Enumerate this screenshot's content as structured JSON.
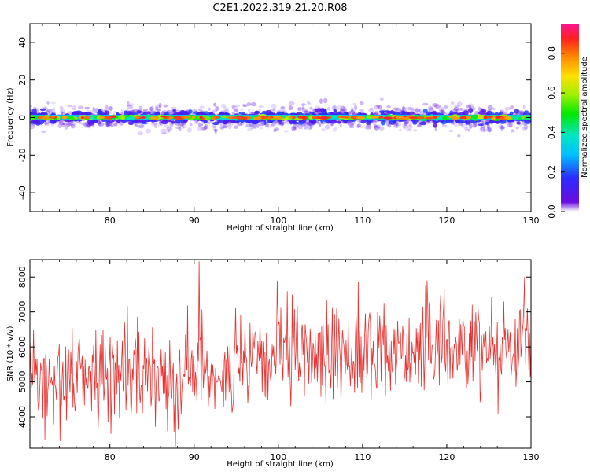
{
  "title": "C2E1.2022.319.21.20.R08",
  "chart_data": [
    {
      "type": "heatmap",
      "xlabel": "Height of straight line (km)",
      "ylabel": "Frequency (Hz)",
      "xlim": [
        70.5,
        130
      ],
      "ylim": [
        -50,
        50
      ],
      "xticks": [
        80,
        90,
        100,
        110,
        120,
        130
      ],
      "yticks": [
        -40,
        -20,
        0,
        20,
        40
      ],
      "band_center_hz": 0,
      "band_core_halfwidth_hz": 2,
      "band_outer_halfwidth_hz": 6,
      "grid": false,
      "colorbar": {
        "label": "Normalized spectral amplitude",
        "range": [
          0,
          0.95
        ],
        "ticks": [
          0.0,
          0.2,
          0.4,
          0.6,
          0.8
        ],
        "colormap": "gist_ncar"
      }
    },
    {
      "type": "line",
      "xlabel": "Height of straight line (km)",
      "ylabel": "SNR (10 * v/v)",
      "xlim": [
        70.5,
        130
      ],
      "ylim": [
        3100,
        8500
      ],
      "xticks": [
        80,
        90,
        100,
        110,
        120,
        130
      ],
      "yticks": [
        4000,
        5000,
        6000,
        7000,
        8000
      ],
      "line_color": "#e8302e",
      "grid": false,
      "trend": [
        [
          70.5,
          5100
        ],
        [
          80,
          5200
        ],
        [
          90,
          5300
        ],
        [
          95,
          5300
        ],
        [
          100,
          5700
        ],
        [
          110,
          5850
        ],
        [
          120,
          6050
        ],
        [
          130,
          6100
        ]
      ],
      "spread": 700,
      "samples": 700,
      "noted_extremes": [
        [
          90.6,
          8450
        ],
        [
          87.8,
          3150
        ],
        [
          99.9,
          7900
        ],
        [
          129.2,
          8000
        ],
        [
          72.3,
          3350
        ]
      ]
    }
  ]
}
